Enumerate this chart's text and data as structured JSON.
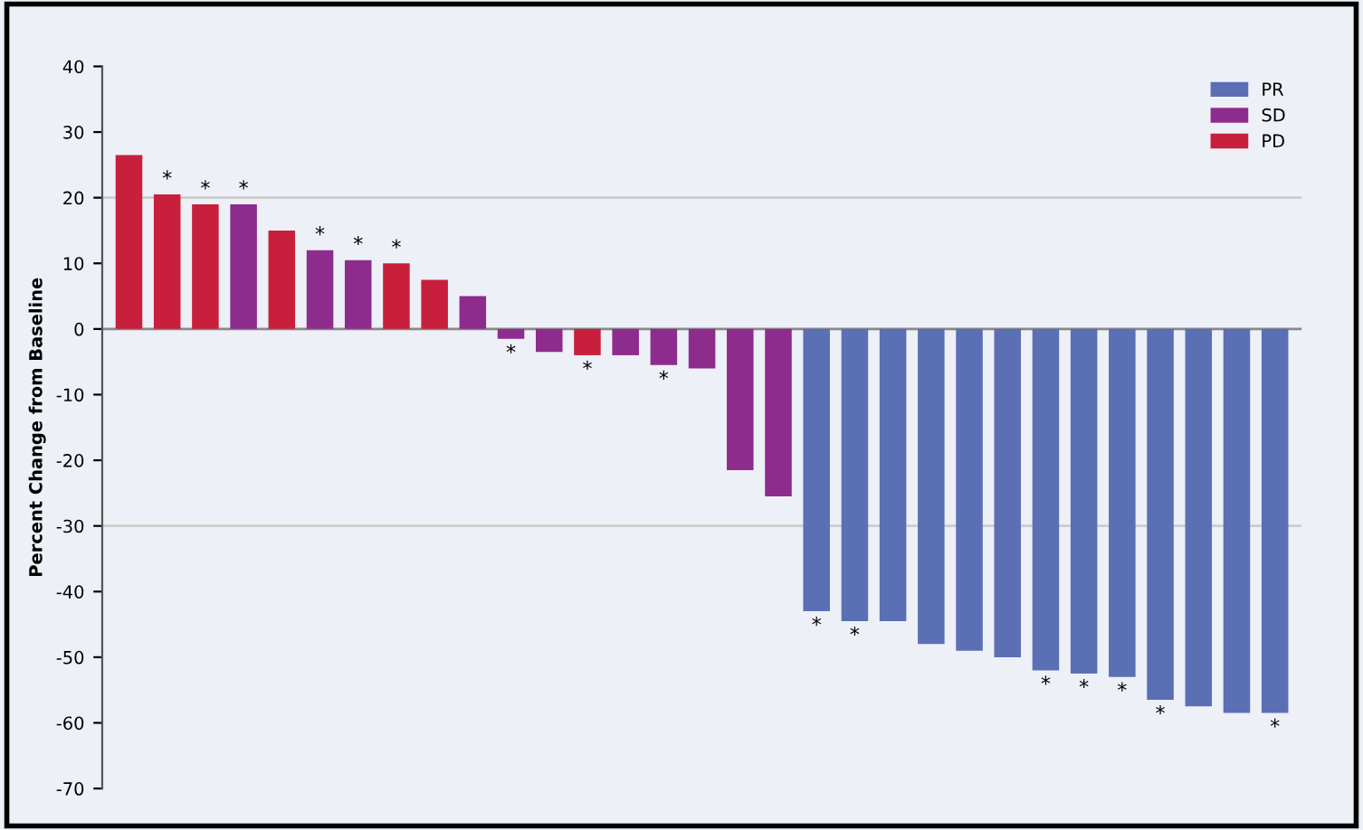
{
  "chart_data": {
    "type": "bar",
    "ylabel": "Percent Change from Baseline",
    "categories": [
      null,
      null,
      null,
      null,
      null,
      null,
      null,
      null,
      null,
      null,
      null,
      null,
      null,
      null,
      null,
      null,
      null,
      null,
      null,
      null,
      null,
      null,
      null,
      null,
      null,
      null,
      null,
      null,
      null,
      null,
      null
    ],
    "series": [
      {
        "name": "PR",
        "color": "#5b6fb5",
        "values": [
          null,
          null,
          null,
          null,
          null,
          null,
          null,
          null,
          null,
          null,
          null,
          null,
          null,
          null,
          null,
          null,
          null,
          null,
          -43,
          -44.5,
          -44.5,
          -48,
          -49,
          -50,
          -52,
          -52.5,
          -53,
          -56.5,
          -57.5,
          -58.5,
          -58.5
        ],
        "value_labels": [
          null,
          null,
          null,
          null,
          null,
          null,
          null,
          null,
          null,
          null,
          null,
          null,
          null,
          null,
          null,
          null,
          null,
          null,
          "*",
          "*",
          null,
          null,
          null,
          null,
          "*",
          "*",
          "*",
          "*",
          null,
          null,
          "*"
        ]
      },
      {
        "name": "SD",
        "color": "#8e2c8e",
        "values": [
          null,
          null,
          null,
          19,
          null,
          12,
          10.5,
          null,
          null,
          5,
          -1.5,
          -3.5,
          null,
          -4,
          -5.5,
          -6,
          -21.5,
          -25.5,
          null,
          null,
          null,
          null,
          null,
          null,
          null,
          null,
          null,
          null,
          null,
          null,
          null
        ],
        "value_labels": [
          null,
          null,
          null,
          "*",
          null,
          "*",
          "*",
          null,
          null,
          null,
          "*",
          null,
          null,
          null,
          "*",
          null,
          null,
          null,
          null,
          null,
          null,
          null,
          null,
          null,
          null,
          null,
          null,
          null,
          null,
          null,
          null
        ]
      },
      {
        "name": "PD",
        "color": "#c8203c",
        "values": [
          26.5,
          20.5,
          19,
          null,
          15,
          null,
          null,
          10,
          7.5,
          null,
          null,
          null,
          -4,
          null,
          null,
          null,
          null,
          null,
          null,
          null,
          null,
          null,
          null,
          null,
          null,
          null,
          null,
          null,
          null,
          null,
          null
        ],
        "value_labels": [
          null,
          "*",
          "*",
          null,
          null,
          null,
          null,
          "*",
          null,
          null,
          null,
          null,
          "*",
          null,
          null,
          null,
          null,
          null,
          null,
          null,
          null,
          null,
          null,
          null,
          null,
          null,
          null,
          null,
          null,
          null,
          null
        ]
      }
    ],
    "ylim": [
      -70,
      40
    ],
    "yticks": [
      40,
      30,
      20,
      10,
      0,
      -10,
      -20,
      -30,
      -40,
      -50,
      -60,
      -70
    ],
    "ref_lines": [
      {
        "axis": "y",
        "value": 0,
        "color": "#888888"
      },
      {
        "axis": "y",
        "value": 20,
        "color": "#cccccc"
      },
      {
        "axis": "y",
        "value": -30,
        "color": "#cccccc"
      }
    ],
    "legend": "top right",
    "grid": false
  }
}
